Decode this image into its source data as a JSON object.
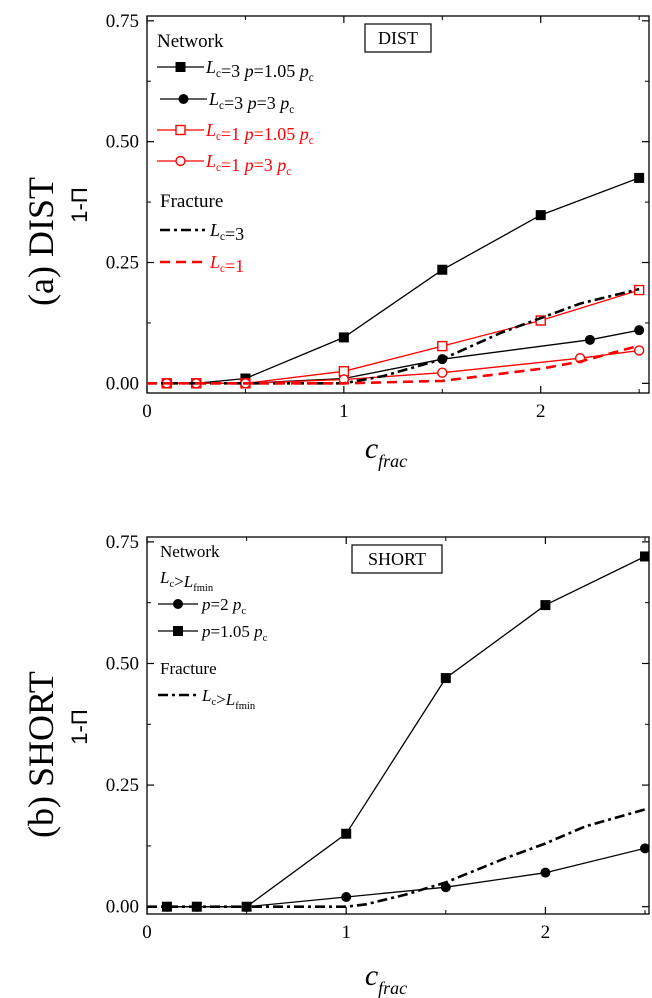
{
  "chart_data": [
    {
      "type": "line",
      "panel_label": "(a) DIST",
      "box_label": "DIST",
      "ylabel": "1-Π",
      "xlabel_main": "c",
      "xlabel_sub": "frac",
      "xlim": [
        0,
        2.55
      ],
      "ylim": [
        -0.02,
        0.76
      ],
      "xticks": [
        0,
        1,
        2
      ],
      "xtick_labels": [
        "0",
        "1",
        "2"
      ],
      "yticks": [
        0.0,
        0.25,
        0.5,
        0.75
      ],
      "ytick_labels": [
        "0.00",
        "0.25",
        "0.50",
        "0.75"
      ],
      "legend_title_network": "Network",
      "legend_title_fracture": "Fracture",
      "series": [
        {
          "name": "Lc=3 p=1.05 pc",
          "legend_parts": [
            "L",
            "c",
            "=3 ",
            "p",
            "=1.05 ",
            "p",
            "c"
          ],
          "color": "#000000",
          "marker": "square-filled",
          "x": [
            0.1,
            0.25,
            0.5,
            1.0,
            1.5,
            2.0,
            2.5
          ],
          "y": [
            0.0,
            0.0,
            0.01,
            0.095,
            0.235,
            0.348,
            0.425
          ]
        },
        {
          "name": "Lc=3 p=3 pc",
          "legend_parts": [
            "L",
            "c",
            "=3 ",
            "p",
            "=3 ",
            "p",
            "c"
          ],
          "color": "#000000",
          "marker": "circle-filled",
          "x": [
            0.1,
            0.25,
            0.5,
            1.0,
            1.5,
            2.25,
            2.5
          ],
          "y": [
            0.0,
            0.0,
            0.0,
            0.01,
            0.05,
            0.09,
            0.11
          ]
        },
        {
          "name": "Lc=1 p=1.05 pc",
          "legend_parts": [
            "L",
            "c",
            "=1 ",
            "p",
            "=1.05 ",
            "p",
            "c"
          ],
          "color": "#ff0000",
          "marker": "square-open",
          "x": [
            0.1,
            0.25,
            0.5,
            1.0,
            1.5,
            2.0,
            2.5
          ],
          "y": [
            0.0,
            0.0,
            0.0,
            0.025,
            0.077,
            0.13,
            0.193
          ]
        },
        {
          "name": "Lc=1 p=3 pc",
          "legend_parts": [
            "L",
            "c",
            "=1 ",
            "p",
            "=3 ",
            "p",
            "c"
          ],
          "color": "#ff0000",
          "marker": "circle-open",
          "x": [
            0.1,
            0.25,
            0.5,
            1.0,
            1.5,
            2.2,
            2.5
          ],
          "y": [
            0.0,
            0.0,
            0.0,
            0.008,
            0.022,
            0.052,
            0.068
          ]
        },
        {
          "name": "Lc=3",
          "legend_parts": [
            "L",
            "c",
            "=3"
          ],
          "color": "#000000",
          "dash": "dashdot",
          "marker": "none",
          "x": [
            0.0,
            0.5,
            1.0,
            1.2,
            1.5,
            1.8,
            2.0,
            2.2,
            2.5
          ],
          "y": [
            0.0,
            0.0,
            0.0,
            0.015,
            0.05,
            0.105,
            0.135,
            0.165,
            0.195
          ]
        },
        {
          "name": "Lc=1",
          "legend_parts": [
            "L",
            "c",
            "=1"
          ],
          "color": "#ff0000",
          "dash": "dashed",
          "marker": "none",
          "x": [
            0.0,
            0.5,
            1.0,
            1.5,
            1.8,
            2.0,
            2.2,
            2.5
          ],
          "y": [
            0.0,
            0.0,
            0.0,
            0.005,
            0.02,
            0.03,
            0.045,
            0.078
          ]
        }
      ]
    },
    {
      "type": "line",
      "panel_label": "(b) SHORT",
      "box_label": "SHORT",
      "ylabel": "1-Π",
      "xlabel_main": "c",
      "xlabel_sub": "frac",
      "xlim": [
        0,
        2.52
      ],
      "ylim": [
        -0.015,
        0.76
      ],
      "xticks": [
        0,
        1,
        2
      ],
      "xtick_labels": [
        "0",
        "1",
        "2"
      ],
      "yticks": [
        0.0,
        0.25,
        0.5,
        0.75
      ],
      "ytick_labels": [
        "0.00",
        "0.25",
        "0.50",
        "0.75"
      ],
      "legend_title_network": "Network",
      "legend_subtitle_network": [
        "L",
        "c",
        ">",
        "L",
        "fmin"
      ],
      "legend_title_fracture": "Fracture",
      "series": [
        {
          "name": "p=2 pc",
          "legend_parts": [
            "",
            "",
            "",
            "p",
            "=2 ",
            "p",
            "c"
          ],
          "color": "#000000",
          "marker": "circle-filled",
          "x": [
            0.1,
            0.25,
            0.5,
            1.0,
            1.5,
            2.0,
            2.5
          ],
          "y": [
            0.0,
            0.0,
            0.0,
            0.02,
            0.04,
            0.07,
            0.12
          ]
        },
        {
          "name": "p=1.05 pc",
          "legend_parts": [
            "",
            "",
            "",
            "p",
            "=1.05 ",
            "p",
            "c"
          ],
          "color": "#000000",
          "marker": "square-filled",
          "x": [
            0.1,
            0.25,
            0.5,
            1.0,
            1.5,
            2.0,
            2.5
          ],
          "y": [
            0.0,
            0.0,
            0.0,
            0.15,
            0.47,
            0.62,
            0.72
          ]
        },
        {
          "name": "Lc>Lfmin",
          "legend_parts": [
            "L",
            "c",
            ">",
            "L",
            "fmin"
          ],
          "color": "#000000",
          "dash": "dashdot",
          "marker": "none",
          "x": [
            0.0,
            0.5,
            1.0,
            1.1,
            1.3,
            1.5,
            1.8,
            2.0,
            2.2,
            2.5
          ],
          "y": [
            0.0,
            0.0,
            0.0,
            0.005,
            0.025,
            0.05,
            0.1,
            0.13,
            0.165,
            0.2
          ]
        }
      ]
    }
  ]
}
